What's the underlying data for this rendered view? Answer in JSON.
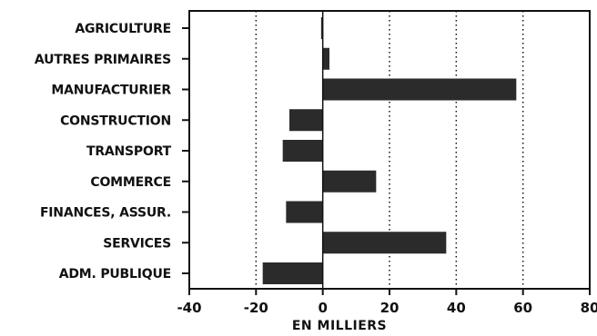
{
  "chart_data": {
    "type": "bar",
    "orientation": "horizontal",
    "categories": [
      "AGRICULTURE",
      "AUTRES PRIMAIRES",
      "MANUFACTURIER",
      "CONSTRUCTION",
      "TRANSPORT",
      "COMMERCE",
      "FINANCES, ASSUR.",
      "SERVICES",
      "ADM. PUBLIQUE"
    ],
    "values": [
      -0.5,
      2,
      58,
      -10,
      -12,
      16,
      -11,
      37,
      -18
    ],
    "title": "",
    "xlabel": "EN MILLIERS",
    "ylabel": "",
    "xlim": [
      -40,
      80
    ],
    "xticks": [
      -40,
      -20,
      0,
      20,
      40,
      60,
      80
    ],
    "xtick_labels": [
      "-40",
      "-20",
      "0",
      "20",
      "40",
      "60",
      "80"
    ],
    "grid": "vertical dotted lines at -20, 20, 40, 60",
    "bar_color": "#2b2b2b",
    "frame_color": "#111111"
  }
}
